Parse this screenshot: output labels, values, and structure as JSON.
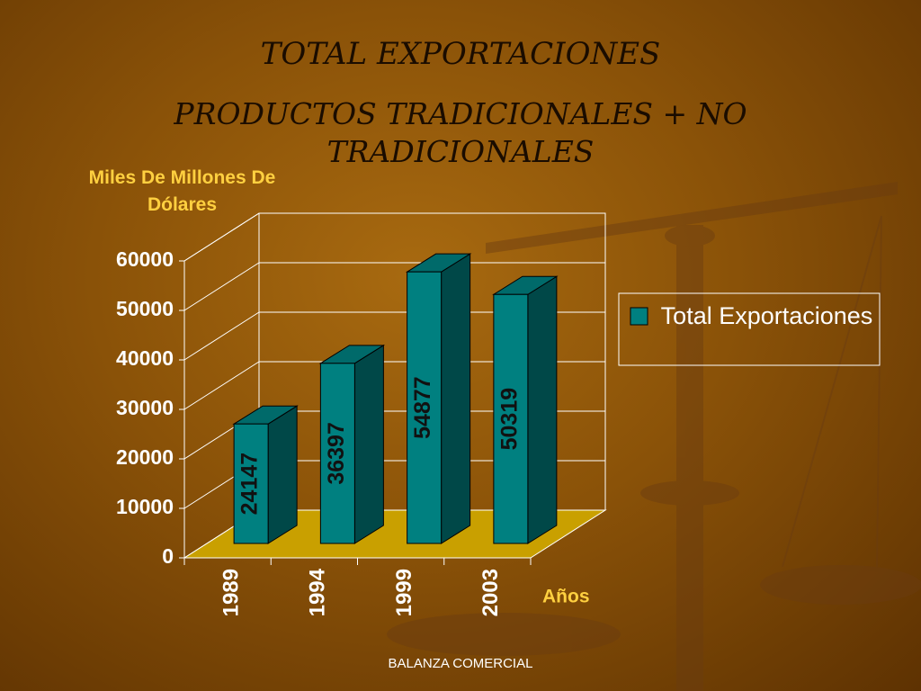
{
  "chart_data": {
    "type": "bar",
    "title": "TOTAL EXPORTACIONES",
    "subtitle": "PRODUCTOS TRADICIONALES + NO TRADICIONALES",
    "y_label": "Miles De Millones De Dólares",
    "x_label": "Años",
    "categories": [
      "1989",
      "1994",
      "1999",
      "2003"
    ],
    "series": [
      {
        "name": "Total Exportaciones",
        "color": "#008080",
        "values": [
          24147,
          36397,
          54877,
          50319
        ]
      }
    ],
    "ylim": [
      0,
      60000
    ],
    "yticks": [
      0,
      10000,
      20000,
      30000,
      40000,
      50000,
      60000
    ],
    "grid": true,
    "legend": "right"
  },
  "footer": "BALANZA COMERCIAL"
}
